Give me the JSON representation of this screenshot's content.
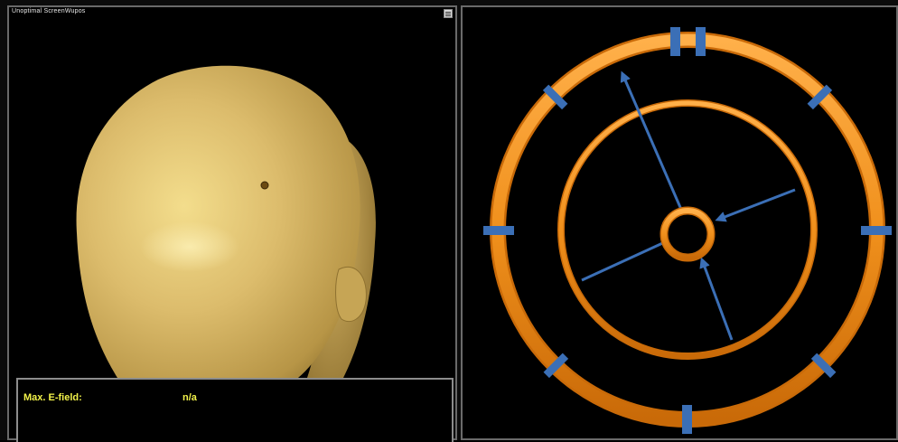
{
  "left_viewport": {
    "title": "Unoptimal ScreenWupos",
    "menu_icon": "hamburger-icon"
  },
  "info": {
    "max_efield_label": "Max. E-field:",
    "max_efield_value": "n/a"
  },
  "colors": {
    "ring_orange": "#f0901c",
    "marker_blue": "#3b6fb6",
    "head_skin": "#d9b66a",
    "info_text": "#f2f24a"
  }
}
